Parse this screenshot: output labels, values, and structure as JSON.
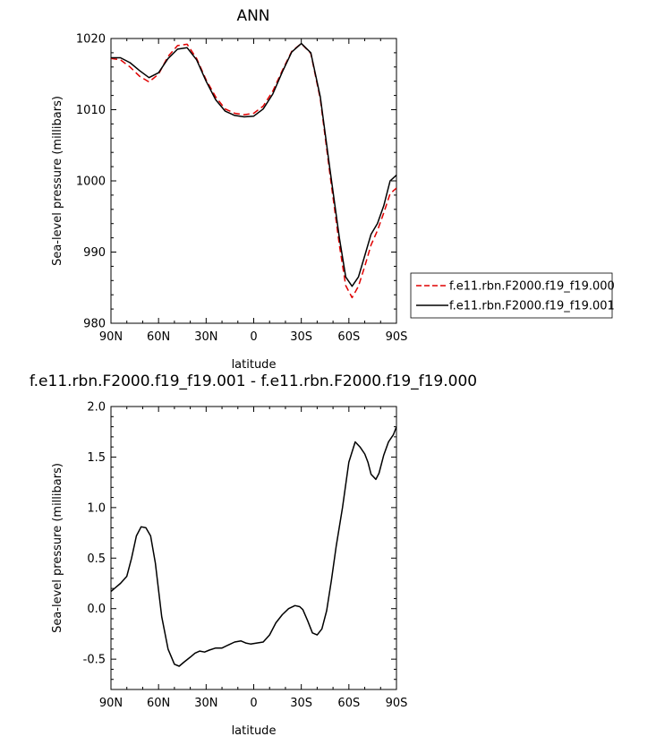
{
  "chart_data": [
    {
      "type": "line",
      "title": "ANN",
      "xlabel": "latitude",
      "ylabel": "Sea-level pressure (millibars)",
      "xlim": [
        -90,
        90
      ],
      "ylim": [
        980,
        1020
      ],
      "xticks": [
        {
          "value": -90,
          "label": "90N"
        },
        {
          "value": -60,
          "label": "60N"
        },
        {
          "value": -30,
          "label": "30N"
        },
        {
          "value": 0,
          "label": "0"
        },
        {
          "value": 30,
          "label": "30S"
        },
        {
          "value": 60,
          "label": "60S"
        },
        {
          "value": 90,
          "label": "90S"
        }
      ],
      "yticks": [
        980,
        990,
        1000,
        1010,
        1020
      ],
      "legend_placement": "right",
      "series": [
        {
          "name": "f.e11.rbn.F2000.f19_f19.000",
          "color": "#e00000",
          "style": "dashed",
          "x": [
            -90,
            -84,
            -78,
            -72,
            -66,
            -60,
            -54,
            -48,
            -42,
            -36,
            -30,
            -24,
            -18,
            -12,
            -6,
            0,
            6,
            12,
            18,
            24,
            30,
            36,
            42,
            48,
            54,
            58,
            62,
            66,
            70,
            74,
            78,
            82,
            86,
            90
          ],
          "y": [
            1017.2,
            1017.0,
            1016.0,
            1014.7,
            1013.9,
            1015.0,
            1017.5,
            1019.0,
            1019.2,
            1017.2,
            1014.2,
            1011.8,
            1010.1,
            1009.5,
            1009.3,
            1009.5,
            1010.5,
            1012.6,
            1015.5,
            1018.2,
            1019.3,
            1017.9,
            1011.5,
            1001.0,
            991.0,
            985.3,
            983.6,
            985.2,
            988.0,
            991.0,
            993.0,
            995.5,
            998.2,
            999.0
          ]
        },
        {
          "name": "f.e11.rbn.F2000.f19_f19.001",
          "color": "#000000",
          "style": "solid",
          "x": [
            -90,
            -84,
            -78,
            -72,
            -66,
            -60,
            -54,
            -48,
            -42,
            -36,
            -30,
            -24,
            -18,
            -12,
            -6,
            0,
            6,
            12,
            18,
            24,
            30,
            36,
            42,
            48,
            54,
            58,
            62,
            66,
            70,
            74,
            78,
            82,
            86,
            90
          ],
          "y": [
            1017.3,
            1017.3,
            1016.6,
            1015.5,
            1014.5,
            1015.2,
            1017.2,
            1018.5,
            1018.7,
            1017.0,
            1014.0,
            1011.4,
            1009.8,
            1009.2,
            1009.0,
            1009.1,
            1010.1,
            1012.2,
            1015.3,
            1018.1,
            1019.3,
            1018.0,
            1011.8,
            1001.7,
            992.0,
            986.5,
            985.2,
            986.5,
            989.5,
            992.5,
            994.0,
            996.5,
            1000.0,
            1000.8
          ]
        }
      ]
    },
    {
      "type": "line",
      "title": "f.e11.rbn.F2000.f19_f19.001 - f.e11.rbn.F2000.f19_f19.000",
      "xlabel": "latitude",
      "ylabel": "Sea-level pressure (millibars)",
      "xlim": [
        -90,
        90
      ],
      "ylim": [
        -0.8,
        2.0
      ],
      "xticks": [
        {
          "value": -90,
          "label": "90N"
        },
        {
          "value": -60,
          "label": "60N"
        },
        {
          "value": -30,
          "label": "30N"
        },
        {
          "value": 0,
          "label": "0"
        },
        {
          "value": 30,
          "label": "30S"
        },
        {
          "value": 60,
          "label": "60S"
        },
        {
          "value": 90,
          "label": "90S"
        }
      ],
      "yticks": [
        {
          "value": -0.5,
          "label": "-0.5"
        },
        {
          "value": 0.0,
          "label": "0.0"
        },
        {
          "value": 0.5,
          "label": "0.5"
        },
        {
          "value": 1.0,
          "label": "1.0"
        },
        {
          "value": 1.5,
          "label": "1.5"
        },
        {
          "value": 2.0,
          "label": "2.0"
        }
      ],
      "series": [
        {
          "color": "#000000",
          "style": "solid",
          "x": [
            -90,
            -84,
            -80,
            -77,
            -74,
            -71,
            -68,
            -65,
            -62,
            -58,
            -54,
            -50,
            -47,
            -44,
            -40,
            -37,
            -34,
            -31,
            -28,
            -24,
            -20,
            -16,
            -12,
            -8,
            -5,
            -2,
            2,
            6,
            10,
            14,
            18,
            22,
            26,
            29,
            31,
            34,
            37,
            40,
            43,
            46,
            49,
            52,
            56,
            60,
            64,
            67,
            70,
            72,
            74,
            77,
            79,
            82,
            85,
            88,
            90
          ],
          "y": [
            0.17,
            0.25,
            0.32,
            0.5,
            0.72,
            0.81,
            0.8,
            0.72,
            0.45,
            -0.08,
            -0.4,
            -0.55,
            -0.57,
            -0.53,
            -0.48,
            -0.44,
            -0.42,
            -0.43,
            -0.41,
            -0.39,
            -0.39,
            -0.36,
            -0.33,
            -0.32,
            -0.34,
            -0.35,
            -0.34,
            -0.33,
            -0.26,
            -0.14,
            -0.06,
            0.0,
            0.03,
            0.02,
            -0.01,
            -0.12,
            -0.24,
            -0.26,
            -0.2,
            -0.02,
            0.28,
            0.62,
            1.0,
            1.45,
            1.65,
            1.6,
            1.53,
            1.45,
            1.33,
            1.28,
            1.34,
            1.52,
            1.65,
            1.72,
            1.8
          ]
        }
      ]
    }
  ]
}
